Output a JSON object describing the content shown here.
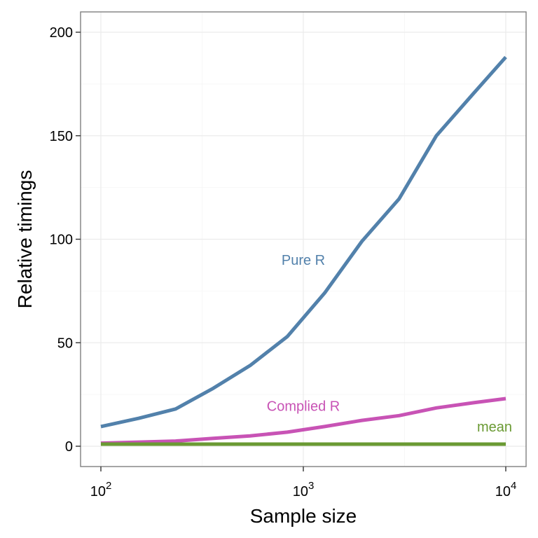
{
  "chart_data": {
    "type": "line",
    "xlabel": "Sample size",
    "ylabel": "Relative timings",
    "x_scale": "log10",
    "xlim": [
      100,
      10000
    ],
    "ylim": [
      0,
      200
    ],
    "x_ticks": [
      {
        "value": 100,
        "base": "10",
        "exp": "2"
      },
      {
        "value": 1000,
        "base": "10",
        "exp": "3"
      },
      {
        "value": 10000,
        "base": "10",
        "exp": "4"
      }
    ],
    "y_ticks": [
      {
        "value": 0,
        "label": "0"
      },
      {
        "value": 50,
        "label": "50"
      },
      {
        "value": 100,
        "label": "100"
      },
      {
        "value": 150,
        "label": "150"
      },
      {
        "value": 200,
        "label": "200"
      }
    ],
    "grid": true,
    "x": [
      100,
      154,
      234,
      359,
      546,
      834,
      1274,
      1946,
      2972,
      4540,
      6938,
      10000
    ],
    "series": [
      {
        "name": "Pure R",
        "color": "#5281ab",
        "values": [
          9.5,
          13.5,
          18,
          28,
          39,
          53,
          74,
          99,
          119.5,
          150,
          170.5,
          188
        ],
        "label_at": {
          "x": 1000,
          "y": 90
        }
      },
      {
        "name": "Complied R",
        "color": "#c853b5",
        "values": [
          1.5,
          2,
          2.5,
          3.8,
          5,
          6.8,
          9.5,
          12.5,
          14.8,
          18.5,
          21,
          23
        ],
        "label_at": {
          "x": 1000,
          "y": 19.5
        }
      },
      {
        "name": "mean",
        "color": "#6a9a33",
        "values": [
          1,
          1,
          1,
          1,
          1,
          1,
          1,
          1,
          1,
          1,
          1,
          1
        ],
        "label_at": {
          "x": 8800,
          "y": 9.5
        }
      }
    ]
  }
}
